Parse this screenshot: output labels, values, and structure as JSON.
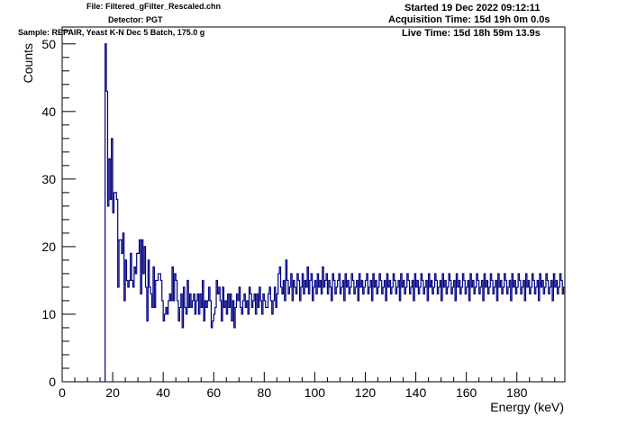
{
  "header": {
    "file": "File: Filtered_gFilter_Rescaled.chn",
    "detector": "Detector: PGT",
    "sample": "Sample: REPAIR, Yeast K-N Dec 5 Batch, 175.0 g",
    "started": "Started 19 Dec 2022 09:12:11",
    "acquisition_time": "Acquisition Time: 15d 19h 0m 0.0s",
    "live_time": "Live Time: 15d 18h 59m 13.9s"
  },
  "colors": {
    "line": "#000080",
    "axis": "#000000"
  },
  "chart_data": {
    "type": "line",
    "style": "step",
    "xlabel": "Energy (keV)",
    "ylabel": "Counts",
    "xlim": [
      0,
      199
    ],
    "ylim": [
      0,
      52.5
    ],
    "x_ticks": [
      0,
      20,
      40,
      60,
      80,
      100,
      120,
      140,
      160,
      180
    ],
    "y_ticks": [
      0,
      10,
      20,
      30,
      40,
      50
    ],
    "grid": false,
    "legend": "none",
    "bin_width_kev": 0.5,
    "first_bin_kev": 17.0,
    "series": [
      {
        "values": [
          50,
          43,
          26,
          33,
          27,
          36,
          25,
          28,
          28,
          27,
          14,
          21,
          21,
          19,
          22,
          12,
          18,
          15,
          14,
          15,
          19,
          15,
          14,
          17,
          16,
          19,
          19,
          21,
          13,
          21,
          16,
          20,
          14,
          9,
          18,
          14,
          13,
          11,
          17,
          11,
          15,
          15,
          16,
          16,
          15,
          12,
          9,
          10,
          11,
          10,
          12,
          13,
          12,
          17,
          12,
          16,
          15,
          12,
          9,
          11,
          13,
          8,
          14,
          11,
          10,
          15,
          11,
          13,
          11,
          12,
          13,
          10,
          12,
          13,
          10,
          13,
          11,
          15,
          9,
          12,
          11,
          12,
          14,
          12,
          8,
          9,
          10,
          11,
          15,
          13,
          14,
          12,
          9,
          14,
          11,
          12,
          10,
          13,
          11,
          13,
          9,
          12,
          8,
          11,
          13,
          12,
          14,
          11,
          10,
          12,
          13,
          11,
          12,
          10,
          14,
          13,
          11,
          12,
          13,
          10,
          13,
          11,
          14,
          12,
          10,
          13,
          12,
          11,
          11,
          13,
          14,
          12,
          10,
          12,
          14,
          11,
          13,
          16,
          17,
          14,
          13,
          15,
          12,
          18,
          15,
          13,
          14,
          16,
          12,
          15,
          14,
          13,
          16,
          15,
          12,
          14,
          16,
          13,
          15,
          14,
          17,
          13,
          15,
          16,
          12,
          14,
          15,
          13,
          16,
          14,
          15,
          13,
          17,
          14,
          15,
          16,
          13,
          15,
          14,
          12,
          16,
          15,
          13,
          14,
          15,
          16,
          13,
          14,
          15,
          12,
          16,
          14,
          15,
          13,
          14,
          16,
          15,
          13,
          14,
          15,
          12,
          16,
          14,
          15,
          13,
          14,
          15,
          16,
          13,
          14,
          15,
          12,
          16,
          14,
          15,
          13,
          14,
          16,
          15,
          13,
          14,
          15,
          12,
          16,
          14,
          15,
          13,
          14,
          16,
          15,
          13,
          14,
          15,
          12,
          16,
          14,
          15,
          13,
          14,
          16,
          15,
          13,
          14,
          15,
          12,
          16,
          14,
          15,
          13,
          14,
          16,
          15,
          13,
          14,
          15,
          12,
          16,
          14,
          15,
          13,
          14,
          16,
          15,
          13,
          14,
          15,
          12,
          16,
          14,
          15,
          13,
          14,
          16,
          15,
          13,
          14,
          15,
          12,
          16,
          14,
          15,
          13,
          14,
          16,
          15,
          13,
          14,
          15,
          12,
          16,
          14,
          15,
          13,
          14,
          16,
          15,
          13,
          14,
          15,
          12,
          16,
          14,
          15,
          13,
          14,
          16,
          15,
          13,
          14,
          15,
          12,
          16,
          14,
          15,
          13,
          14,
          16,
          15,
          13,
          14,
          15,
          12,
          16,
          14,
          15,
          13,
          14,
          16,
          15,
          13,
          14,
          15,
          12,
          16,
          14,
          15,
          13,
          14,
          16,
          15,
          13,
          14,
          15,
          12,
          16,
          14,
          15,
          13,
          14,
          16,
          15,
          13,
          14,
          15,
          12,
          16,
          14,
          15,
          13,
          14,
          16,
          15,
          13,
          14
        ]
      }
    ]
  }
}
